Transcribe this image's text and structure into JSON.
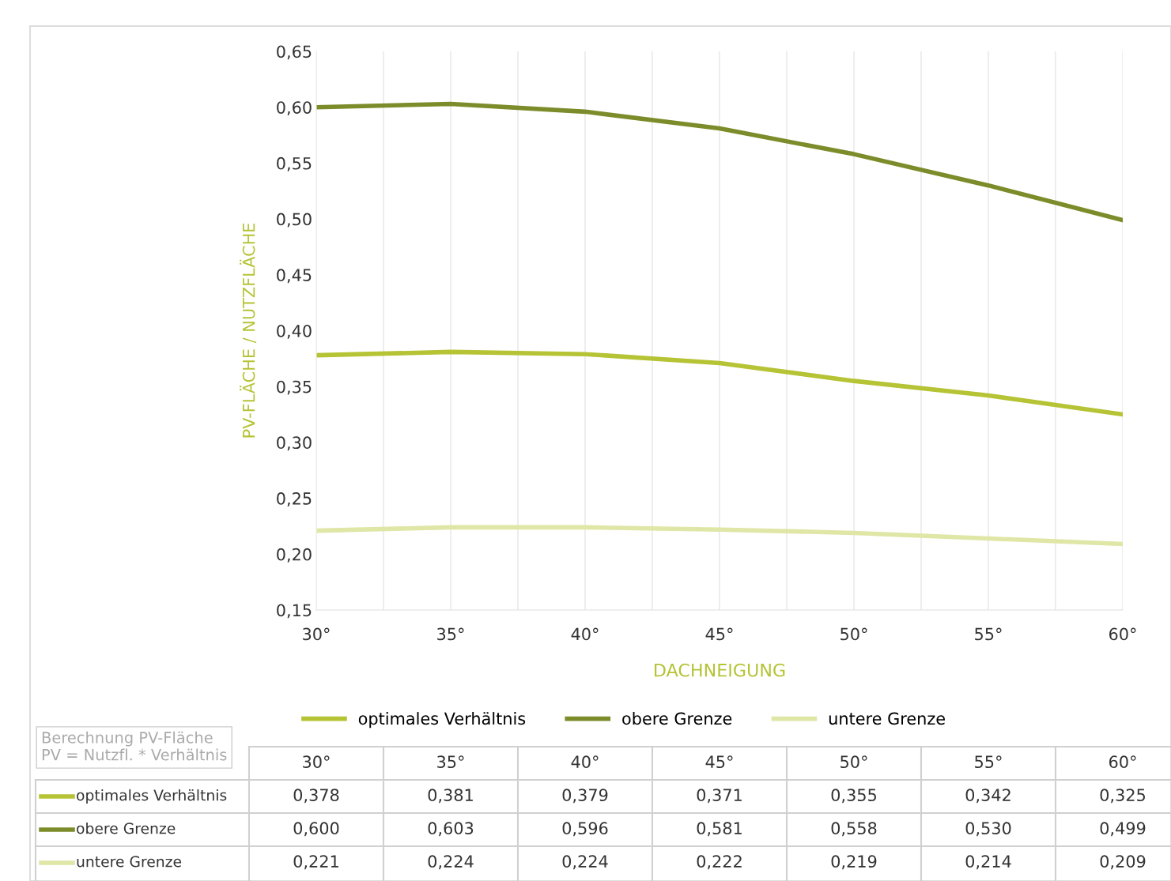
{
  "chart_data": {
    "type": "line",
    "xlabel": "DACHNEIGUNG",
    "ylabel": "PV-FLÄCHE / NUTZFLÄCHE",
    "categories": [
      "30°",
      "35°",
      "40°",
      "45°",
      "50°",
      "55°",
      "60°"
    ],
    "series": [
      {
        "name": "optimales Verhältnis",
        "color": "#b5c334",
        "values": [
          0.378,
          0.381,
          0.379,
          0.371,
          0.355,
          0.342,
          0.325
        ],
        "value_labels": [
          "0,378",
          "0,381",
          "0,379",
          "0,371",
          "0,355",
          "0,342",
          "0,325"
        ]
      },
      {
        "name": "obere Grenze",
        "color": "#7d8c2a",
        "values": [
          0.6,
          0.603,
          0.596,
          0.581,
          0.558,
          0.53,
          0.499
        ],
        "value_labels": [
          "0,600",
          "0,603",
          "0,596",
          "0,581",
          "0,558",
          "0,530",
          "0,499"
        ]
      },
      {
        "name": "untere Grenze",
        "color": "#dfe6a6",
        "values": [
          0.221,
          0.224,
          0.224,
          0.222,
          0.219,
          0.214,
          0.209
        ],
        "value_labels": [
          "0,221",
          "0,224",
          "0,224",
          "0,222",
          "0,219",
          "0,214",
          "0,209"
        ]
      }
    ],
    "ylim": [
      0.15,
      0.65
    ],
    "yticks": [
      {
        "value": 0.15,
        "label": "0,15"
      },
      {
        "value": 0.2,
        "label": "0,20"
      },
      {
        "value": 0.25,
        "label": "0,25"
      },
      {
        "value": 0.3,
        "label": "0,30"
      },
      {
        "value": 0.35,
        "label": "0,35"
      },
      {
        "value": 0.4,
        "label": "0,40"
      },
      {
        "value": 0.45,
        "label": "0,45"
      },
      {
        "value": 0.5,
        "label": "0,50"
      },
      {
        "value": 0.55,
        "label": "0,55"
      },
      {
        "value": 0.6,
        "label": "0,60"
      },
      {
        "value": 0.65,
        "label": "0,65"
      }
    ],
    "grid": "x",
    "legend": "bottom",
    "marker": "none",
    "line_style": "solid",
    "annotations": [
      "Berechnung PV-Fläche\nPV = Nutzfl. * Verhältnis"
    ]
  }
}
